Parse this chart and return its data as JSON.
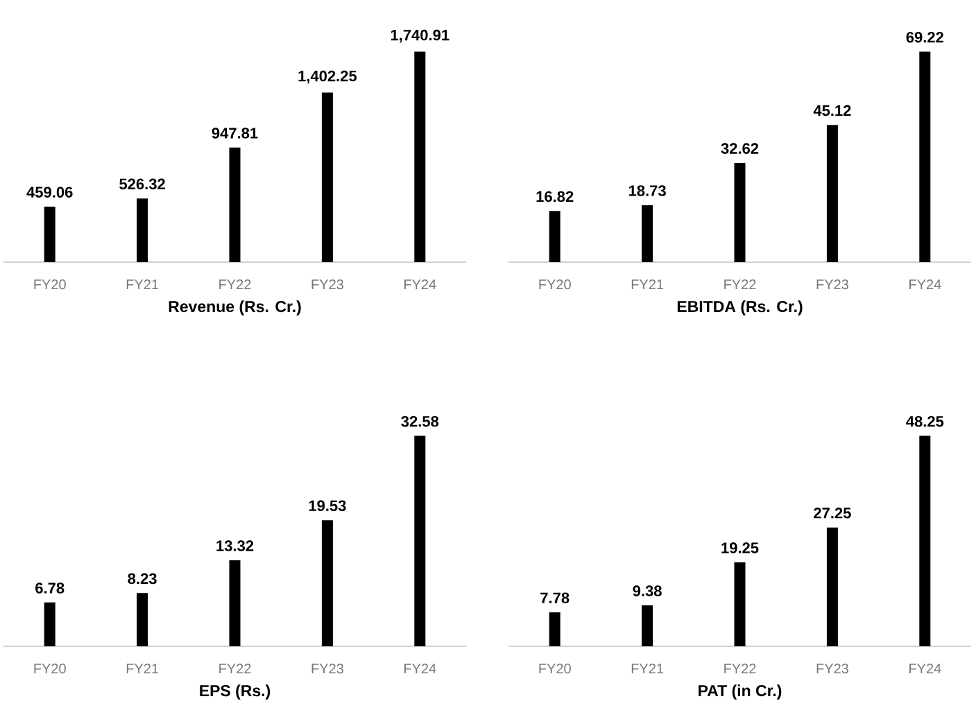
{
  "chart_data": [
    {
      "type": "bar",
      "title": "Revenue (Rs. Cr.)",
      "categories": [
        "FY20",
        "FY21",
        "FY22",
        "FY23",
        "FY24"
      ],
      "values": [
        459.06,
        526.32,
        947.81,
        1402.25,
        1740.91
      ],
      "value_labels": [
        "459.06",
        "526.32",
        "947.81",
        "1,402.25",
        "1,740.91"
      ],
      "color": "#000000"
    },
    {
      "type": "bar",
      "title": "EBITDA (Rs. Cr.)",
      "categories": [
        "FY20",
        "FY21",
        "FY22",
        "FY23",
        "FY24"
      ],
      "values": [
        16.82,
        18.73,
        32.62,
        45.12,
        69.22
      ],
      "data_labels": true,
      "color": "#000000"
    },
    {
      "type": "bar",
      "title": "EPS (Rs.)",
      "categories": [
        "FY20",
        "FY21",
        "FY22",
        "FY23",
        "FY24"
      ],
      "values": [
        6.78,
        8.23,
        13.32,
        19.53,
        32.58
      ],
      "data_labels": true,
      "color": "#000000"
    },
    {
      "type": "bar",
      "title": "PAT (in Cr.)",
      "categories": [
        "FY20",
        "FY21",
        "FY22",
        "FY23",
        "FY24"
      ],
      "values": [
        7.78,
        9.38,
        19.25,
        27.25,
        48.25
      ],
      "data_labels": true,
      "color": "#000000"
    }
  ]
}
